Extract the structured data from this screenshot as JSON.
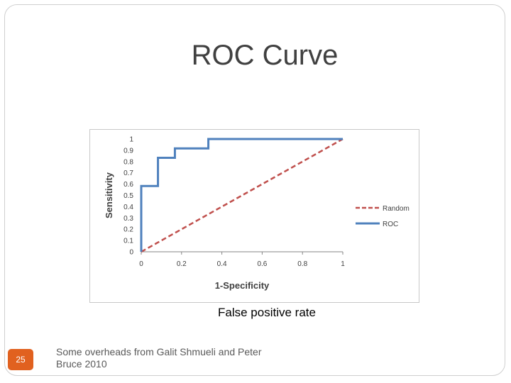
{
  "slide": {
    "title": "ROC Curve",
    "caption": "False positive rate",
    "page_number": "25",
    "footer": "Some overheads from Galit Shmueli and Peter Bruce 2010"
  },
  "chart_data": {
    "type": "line",
    "xlabel": "1-Specificity",
    "ylabel": "Sensitivity",
    "xlim": [
      0,
      1
    ],
    "ylim": [
      0,
      1
    ],
    "xticks": [
      "0",
      "0.2",
      "0.4",
      "0.6",
      "0.8",
      "1"
    ],
    "yticks": [
      "0",
      "0.1",
      "0.2",
      "0.3",
      "0.4",
      "0.5",
      "0.6",
      "0.7",
      "0.8",
      "0.9",
      "1"
    ],
    "grid": false,
    "legend_position": "right",
    "series": [
      {
        "name": "Random",
        "style": "dashed",
        "color": "#c0504d",
        "x": [
          0,
          1
        ],
        "y": [
          0,
          1
        ]
      },
      {
        "name": "ROC",
        "style": "solid",
        "color": "#4f81bd",
        "x": [
          0,
          0,
          0.083,
          0.083,
          0.167,
          0.167,
          0.333,
          0.333,
          1
        ],
        "y": [
          0,
          0.583,
          0.583,
          0.833,
          0.833,
          0.917,
          0.917,
          1,
          1
        ]
      }
    ]
  }
}
